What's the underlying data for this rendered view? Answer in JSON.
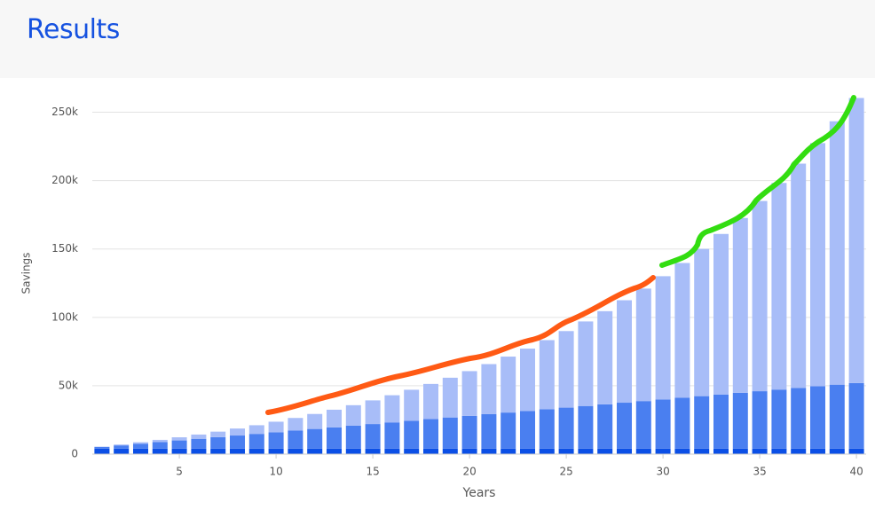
{
  "chart_data": {
    "type": "stacked_bar",
    "title": "Results",
    "x": [
      1,
      2,
      3,
      4,
      5,
      6,
      7,
      8,
      9,
      10,
      11,
      12,
      13,
      14,
      15,
      16,
      17,
      18,
      19,
      20,
      21,
      22,
      23,
      24,
      25,
      26,
      27,
      28,
      29,
      30,
      31,
      32,
      33,
      34,
      35,
      36,
      37,
      38,
      39,
      40
    ],
    "series": [
      {
        "color": "#0b4fe6",
        "values": [
          4000,
          4000,
          4000,
          4000,
          4000,
          4000,
          4000,
          4000,
          4000,
          4000,
          4000,
          4000,
          4000,
          4000,
          4000,
          4000,
          4000,
          4000,
          4000,
          4000,
          4000,
          4000,
          4000,
          4000,
          4000,
          4000,
          4000,
          4000,
          4000,
          4000,
          4000,
          4000,
          4000,
          4000,
          4000,
          4000,
          4000,
          4000,
          4000,
          4000
        ]
      },
      {
        "color": "#4a7ff0",
        "values": [
          1200,
          2400,
          3600,
          4800,
          6000,
          7200,
          8400,
          9600,
          10800,
          12000,
          13200,
          14400,
          15600,
          16800,
          18000,
          19200,
          20400,
          21600,
          22800,
          24000,
          25200,
          26400,
          27600,
          28800,
          30000,
          31200,
          32400,
          33600,
          34800,
          36000,
          37200,
          38400,
          39600,
          40800,
          42000,
          43200,
          44400,
          45600,
          46800,
          48000
        ]
      },
      {
        "color": "#a8bdf8",
        "values": [
          260,
          614,
          1070,
          1635,
          2313,
          3112,
          4044,
          5112,
          6329,
          7701,
          9244,
          10961,
          12870,
          14981,
          17305,
          19861,
          22659,
          25720,
          29055,
          32684,
          36630,
          40909,
          45544,
          50559,
          55976,
          61824,
          68131,
          74925,
          82241,
          90107,
          98563,
          107649,
          117401,
          127868,
          139091,
          151121,
          164011,
          177817,
          192601,
          208421
        ]
      }
    ],
    "xlabel": "Years",
    "ylabel": "Savings",
    "xlim": [
      0.5,
      40.5
    ],
    "xticks": [
      5,
      10,
      15,
      20,
      25,
      30,
      35,
      40
    ],
    "ylim": [
      0,
      275000
    ],
    "yticks": [
      0,
      {
        "value": 50000,
        "label": "50k"
      },
      {
        "value": 100000,
        "label": "100k"
      },
      {
        "value": 150000,
        "label": "150k"
      },
      {
        "value": 200000,
        "label": "200k"
      },
      {
        "value": 250000,
        "label": "250k"
      }
    ],
    "grid": true
  }
}
